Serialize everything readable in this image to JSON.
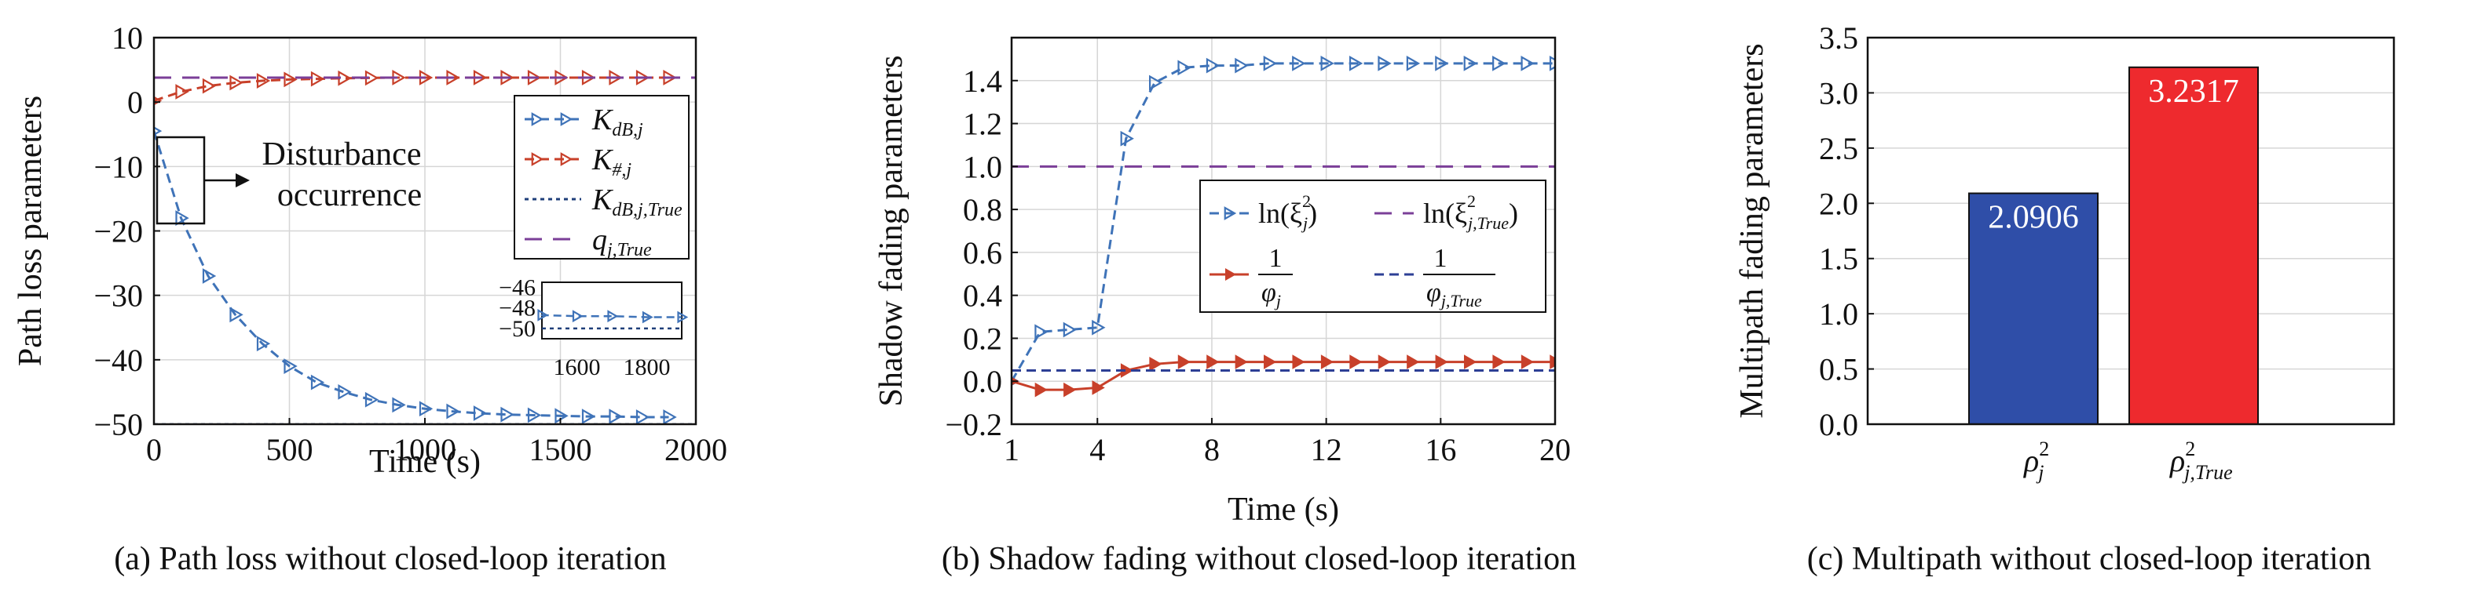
{
  "chart_data": [
    {
      "type": "line",
      "panel": "a",
      "caption": "(a) Path loss without closed-loop iteration",
      "xlabel": "Time (s)",
      "ylabel": "Path loss parameters",
      "xlim": [
        0,
        2000
      ],
      "ylim": [
        -50,
        10
      ],
      "xticks": [
        0,
        500,
        1000,
        1500,
        2000
      ],
      "yticks": [
        10,
        0,
        -10,
        -20,
        -30,
        -40,
        -50
      ],
      "ytick_labels": [
        "10",
        "0",
        "−10",
        "−20",
        "−30",
        "−40",
        "−50"
      ],
      "grid": true,
      "legend_position": "right",
      "series": [
        {
          "name": "K_dB,j",
          "label_main": "K",
          "label_sub": "dB,j",
          "color": "#3f73b8",
          "style": "dashed",
          "marker": "right-triangle",
          "x": [
            0,
            100,
            200,
            300,
            400,
            500,
            600,
            700,
            800,
            900,
            1000,
            1100,
            1200,
            1300,
            1400,
            1500,
            1600,
            1700,
            1800,
            1900
          ],
          "y": [
            -4.5,
            -18.0,
            -27.0,
            -33.0,
            -37.5,
            -41.0,
            -43.5,
            -45.0,
            -46.2,
            -47.0,
            -47.6,
            -48.0,
            -48.3,
            -48.5,
            -48.6,
            -48.7,
            -48.8,
            -48.8,
            -48.9,
            -48.9
          ]
        },
        {
          "name": "K_#,j",
          "label_main": "K",
          "label_sub": "#,j",
          "color": "#c8402a",
          "style": "dashed",
          "marker": "right-triangle",
          "x": [
            0,
            100,
            200,
            300,
            400,
            500,
            600,
            700,
            800,
            900,
            1000,
            1100,
            1200,
            1300,
            1400,
            1500,
            1600,
            1700,
            1800,
            1900
          ],
          "y": [
            0.2,
            1.6,
            2.5,
            3.0,
            3.3,
            3.5,
            3.6,
            3.7,
            3.75,
            3.8,
            3.8,
            3.8,
            3.8,
            3.8,
            3.8,
            3.8,
            3.8,
            3.8,
            3.8,
            3.8
          ]
        },
        {
          "name": "K_dB,j,True",
          "label_main": "K",
          "label_sub": "dB,j,True",
          "color": "#1f3f7a",
          "style": "dotted",
          "marker": "none",
          "x": [
            0,
            2000
          ],
          "y": [
            -50,
            -50
          ]
        },
        {
          "name": "q_j,True",
          "label_main": "q",
          "label_sub": "j,True",
          "color": "#7b3f98",
          "style": "longdash",
          "marker": "none",
          "x": [
            0,
            2000
          ],
          "y": [
            3.8,
            3.8
          ]
        }
      ],
      "annotation": {
        "line1": "Disturbance",
        "line2": "occurrence"
      },
      "inset": {
        "xlim": [
          1500,
          1900
        ],
        "ylim": [
          -51,
          -45.5
        ],
        "xticks": [
          1600,
          1800
        ],
        "xtick_labels": [
          "1600",
          "1800"
        ],
        "yticks": [
          -46,
          -48,
          -50
        ],
        "ytick_labels": [
          "−46",
          "−48",
          "−50"
        ]
      }
    },
    {
      "type": "line",
      "panel": "b",
      "caption": "(b) Shadow fading without closed-loop iteration",
      "xlabel": "Time (s)",
      "ylabel": "Shadow fading parameters",
      "xlim": [
        1,
        20
      ],
      "ylim": [
        -0.2,
        1.6
      ],
      "xticks": [
        1,
        4,
        8,
        12,
        16,
        20
      ],
      "yticks": [
        -0.2,
        0.0,
        0.2,
        0.4,
        0.6,
        0.8,
        1.0,
        1.2,
        1.4
      ],
      "ytick_labels": [
        "−0.2",
        "0.0",
        "0.2",
        "0.4",
        "0.6",
        "0.8",
        "1.0",
        "1.2",
        "1.4"
      ],
      "grid": true,
      "legend_position": "center-right",
      "series": [
        {
          "name": "ln(ξ_j^2)",
          "label_text": "ln(ξ",
          "label_sub": "j",
          "label_sup": "2",
          "label_tail": ")",
          "color": "#3f73b8",
          "style": "dashed",
          "marker": "right-triangle",
          "x": [
            1,
            2,
            3,
            4,
            5,
            6,
            7,
            8,
            9,
            10,
            11,
            12,
            13,
            14,
            15,
            16,
            17,
            18,
            19,
            20
          ],
          "y": [
            0.0,
            0.23,
            0.24,
            0.25,
            1.13,
            1.39,
            1.46,
            1.47,
            1.47,
            1.48,
            1.48,
            1.48,
            1.48,
            1.48,
            1.48,
            1.48,
            1.48,
            1.48,
            1.48,
            1.48
          ]
        },
        {
          "name": "ln(ξ_j,True^2)",
          "label_text": "ln(ξ",
          "label_sub": "j,True",
          "label_sup": "2",
          "label_tail": ")",
          "color": "#7b3f98",
          "style": "longdash",
          "marker": "none",
          "x": [
            1,
            20
          ],
          "y": [
            1.0,
            1.0
          ]
        },
        {
          "name": "1/φ_j",
          "label_num": "1",
          "label_den": "φ",
          "label_sub": "j",
          "color": "#c8402a",
          "style": "solid",
          "marker": "right-triangle",
          "x": [
            1,
            2,
            3,
            4,
            5,
            6,
            7,
            8,
            9,
            10,
            11,
            12,
            13,
            14,
            15,
            16,
            17,
            18,
            19,
            20
          ],
          "y": [
            0.0,
            -0.04,
            -0.04,
            -0.03,
            0.05,
            0.08,
            0.09,
            0.09,
            0.09,
            0.09,
            0.09,
            0.09,
            0.09,
            0.09,
            0.09,
            0.09,
            0.09,
            0.09,
            0.09,
            0.09
          ]
        },
        {
          "name": "1/φ_j,True",
          "label_num": "1",
          "label_den": "φ",
          "label_sub": "j,True",
          "color": "#2d3f95",
          "style": "dashed",
          "marker": "none",
          "x": [
            1,
            20
          ],
          "y": [
            0.05,
            0.05
          ]
        }
      ]
    },
    {
      "type": "bar",
      "panel": "c",
      "caption": "(c) Multipath without closed-loop iteration",
      "xlabel": "",
      "ylabel": "Multipath fading parameters",
      "ylim": [
        0,
        3.5
      ],
      "yticks": [
        0.0,
        0.5,
        1.0,
        1.5,
        2.0,
        2.5,
        3.0,
        3.5
      ],
      "ytick_labels": [
        "0.0",
        "0.5",
        "1.0",
        "1.5",
        "2.0",
        "2.5",
        "3.0",
        "3.5"
      ],
      "grid": true,
      "categories": [
        {
          "main": "ρ",
          "sub": "j",
          "sup": "2"
        },
        {
          "main": "ρ",
          "sub": "j,True",
          "sup": "2"
        }
      ],
      "values": [
        2.0906,
        3.2317
      ],
      "value_labels": [
        "2.0906",
        "3.2317"
      ],
      "colors": [
        "#2f4ea8",
        "#ee2a2e"
      ]
    }
  ]
}
